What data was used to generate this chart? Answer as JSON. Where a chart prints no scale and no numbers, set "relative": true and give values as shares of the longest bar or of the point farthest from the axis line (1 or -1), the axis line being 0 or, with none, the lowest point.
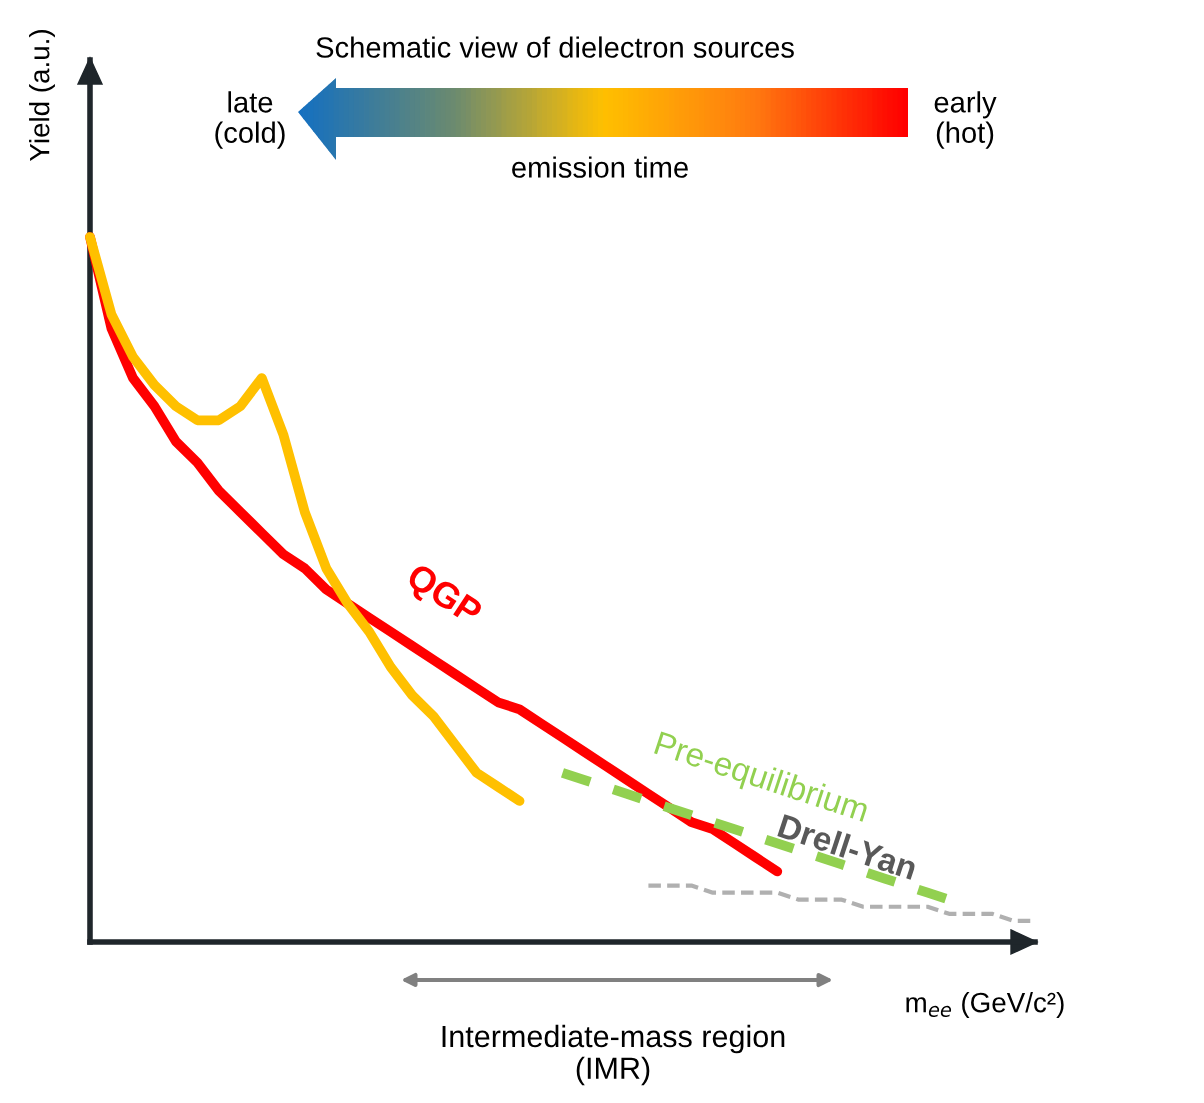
{
  "chart_data": {
    "type": "line",
    "relative": true,
    "title": "Schematic view of dielectron sources",
    "xlabel": "m$_{ee}$ (GeV/c²)",
    "ylabel": "Yield (a.u.)",
    "annotations": [
      "late\n(cold)",
      "early\n(hot)",
      "emission time",
      "Intermediate-mass region\n(IMR)"
    ],
    "categories": [
      null,
      null,
      null,
      null,
      null,
      null,
      null,
      null,
      null,
      null,
      null,
      null,
      null,
      null,
      null,
      null,
      null,
      null,
      null,
      null,
      null,
      null,
      null,
      null,
      null,
      null,
      null,
      null,
      null,
      null,
      null,
      null,
      null,
      null,
      null,
      null,
      null,
      null,
      null,
      null,
      null,
      null,
      null,
      null,
      null
    ],
    "series": [
      {
        "name": "QGP",
        "color": "#ff0000",
        "line_style": "solid",
        "values": [
          1.0,
          0.87,
          0.8,
          0.76,
          0.71,
          0.68,
          0.64,
          0.61,
          0.58,
          0.55,
          0.53,
          0.5,
          0.48,
          0.46,
          0.44,
          0.42,
          0.4,
          0.38,
          0.36,
          0.34,
          0.33,
          0.31,
          0.29,
          0.27,
          0.25,
          0.23,
          0.21,
          0.19,
          0.17,
          0.16,
          0.14,
          0.12,
          0.1,
          null,
          null,
          null,
          null,
          null,
          null,
          null,
          null,
          null,
          null,
          null,
          null
        ]
      },
      {
        "color": "#ffc000",
        "line_style": "solid",
        "values": [
          1.0,
          0.89,
          0.83,
          0.79,
          0.76,
          0.74,
          0.74,
          0.76,
          0.8,
          0.72,
          0.61,
          0.53,
          0.48,
          0.44,
          0.39,
          0.35,
          0.32,
          0.28,
          0.24,
          0.22,
          0.2,
          null,
          null,
          null,
          null,
          null,
          null,
          null,
          null,
          null,
          null,
          null,
          null,
          null,
          null,
          null,
          null,
          null,
          null,
          null,
          null,
          null,
          null,
          null,
          null
        ]
      },
      {
        "name": "Pre-equilibrium",
        "color": "#92d050",
        "line_style": "dashed",
        "values": [
          null,
          null,
          null,
          null,
          null,
          null,
          null,
          null,
          null,
          null,
          null,
          null,
          null,
          null,
          null,
          null,
          null,
          null,
          null,
          null,
          null,
          null,
          0.24,
          0.23,
          0.22,
          0.21,
          0.2,
          0.19,
          0.18,
          0.17,
          0.16,
          0.15,
          0.14,
          0.13,
          0.12,
          0.11,
          0.1,
          0.09,
          0.08,
          0.07,
          0.06,
          null,
          null,
          null,
          null
        ]
      },
      {
        "name": "Drell-Yan",
        "color": "#b0b0b0",
        "line_style": "dashed",
        "values": [
          null,
          null,
          null,
          null,
          null,
          null,
          null,
          null,
          null,
          null,
          null,
          null,
          null,
          null,
          null,
          null,
          null,
          null,
          null,
          null,
          null,
          null,
          null,
          null,
          null,
          null,
          0.08,
          0.08,
          0.08,
          0.07,
          0.07,
          0.07,
          0.07,
          0.06,
          0.06,
          0.06,
          0.05,
          0.05,
          0.05,
          0.05,
          0.04,
          0.04,
          0.04,
          0.03,
          0.03
        ]
      }
    ]
  }
}
